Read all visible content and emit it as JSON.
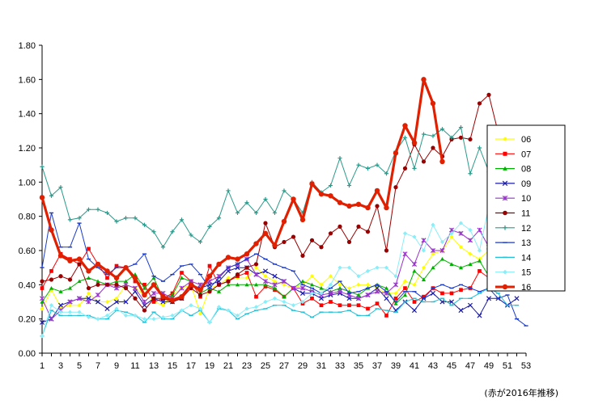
{
  "chart_data": {
    "type": "line",
    "title": "",
    "xlabel": "",
    "ylabel": "",
    "xlim": [
      1,
      53
    ],
    "ylim": [
      0,
      1.8
    ],
    "yticks": [
      "0.00",
      "0.20",
      "0.40",
      "0.60",
      "0.80",
      "1.00",
      "1.20",
      "1.40",
      "1.60",
      "1.80"
    ],
    "xticks": [
      1,
      3,
      5,
      7,
      9,
      11,
      13,
      15,
      17,
      19,
      21,
      23,
      25,
      27,
      29,
      31,
      33,
      35,
      37,
      39,
      41,
      43,
      45,
      47,
      49,
      51,
      53
    ],
    "grid": false,
    "legend_position": "right",
    "note": "(赤が2016年推移)",
    "series": [
      {
        "name": "06",
        "color": "#ffff00",
        "marker": "diamond",
        "values": [
          0.26,
          0.37,
          0.27,
          0.28,
          0.28,
          0.35,
          0.3,
          0.3,
          0.32,
          0.4,
          0.38,
          0.34,
          0.3,
          0.28,
          0.34,
          0.38,
          0.4,
          0.23,
          0.38,
          0.4,
          0.44,
          0.44,
          0.44,
          0.5,
          0.45,
          0.42,
          0.4,
          0.38,
          0.4,
          0.45,
          0.4,
          0.45,
          0.4,
          0.38,
          0.4,
          0.4,
          0.38,
          0.35,
          0.35,
          0.42,
          0.4,
          0.5,
          0.58,
          0.6,
          0.68,
          0.62,
          0.58,
          0.55,
          0.6,
          0.62,
          0.64,
          0.5
        ]
      },
      {
        "name": "07",
        "color": "#ff0000",
        "marker": "square",
        "values": [
          0.38,
          0.48,
          0.58,
          0.55,
          0.52,
          0.61,
          0.52,
          0.44,
          0.51,
          0.5,
          0.42,
          0.4,
          0.3,
          0.32,
          0.35,
          0.47,
          0.42,
          0.33,
          0.51,
          0.4,
          0.42,
          0.45,
          0.47,
          0.33,
          0.39,
          0.37,
          0.33,
          0.38,
          0.29,
          0.32,
          0.28,
          0.3,
          0.28,
          0.28,
          0.28,
          0.26,
          0.29,
          0.22,
          0.32,
          0.38,
          0.3,
          0.33,
          0.38,
          0.35,
          0.35,
          0.37,
          0.38,
          0.48,
          0.44,
          0.45,
          0.48,
          0.5
        ]
      },
      {
        "name": "08",
        "color": "#00b000",
        "marker": "triangle",
        "values": [
          0.3,
          0.38,
          0.36,
          0.38,
          0.42,
          0.44,
          0.42,
          0.4,
          0.42,
          0.42,
          0.46,
          0.38,
          0.44,
          0.32,
          0.34,
          0.44,
          0.42,
          0.35,
          0.38,
          0.36,
          0.4,
          0.4,
          0.4,
          0.4,
          0.4,
          0.38,
          0.33,
          0.38,
          0.42,
          0.4,
          0.38,
          0.36,
          0.38,
          0.36,
          0.34,
          0.38,
          0.4,
          0.38,
          0.29,
          0.34,
          0.48,
          0.43,
          0.5,
          0.55,
          0.52,
          0.5,
          0.52,
          0.54,
          0.45,
          0.42,
          0.52,
          0.47
        ]
      },
      {
        "name": "09",
        "color": "#1a1aaa",
        "marker": "x",
        "values": [
          0.18,
          0.2,
          0.28,
          0.3,
          0.32,
          0.32,
          0.3,
          0.26,
          0.3,
          0.3,
          0.36,
          0.28,
          0.32,
          0.3,
          0.3,
          0.32,
          0.4,
          0.38,
          0.4,
          0.42,
          0.48,
          0.5,
          0.5,
          0.46,
          0.48,
          0.45,
          0.42,
          0.38,
          0.35,
          0.35,
          0.32,
          0.34,
          0.35,
          0.32,
          0.32,
          0.34,
          0.38,
          0.32,
          0.25,
          0.3,
          0.25,
          0.32,
          0.35,
          0.3,
          0.3,
          0.25,
          0.28,
          0.22,
          0.32,
          0.32,
          0.28,
          0.32
        ]
      },
      {
        "name": "10",
        "color": "#9933cc",
        "marker": "asterisk",
        "values": [
          0.32,
          0.2,
          0.25,
          0.3,
          0.32,
          0.3,
          0.34,
          0.4,
          0.38,
          0.4,
          0.38,
          0.3,
          0.35,
          0.35,
          0.32,
          0.38,
          0.42,
          0.4,
          0.42,
          0.45,
          0.5,
          0.52,
          0.55,
          0.46,
          0.42,
          0.4,
          0.42,
          0.38,
          0.38,
          0.36,
          0.34,
          0.35,
          0.36,
          0.34,
          0.32,
          0.34,
          0.36,
          0.35,
          0.4,
          0.58,
          0.52,
          0.66,
          0.6,
          0.6,
          0.72,
          0.7,
          0.66,
          0.72,
          0.62,
          0.64,
          0.65,
          0.4
        ]
      },
      {
        "name": "11",
        "color": "#990000",
        "marker": "circle",
        "values": [
          0.42,
          0.43,
          0.45,
          0.43,
          0.52,
          0.38,
          0.4,
          0.4,
          0.4,
          0.38,
          0.32,
          0.25,
          0.32,
          0.32,
          0.3,
          0.32,
          0.38,
          0.34,
          0.36,
          0.4,
          0.42,
          0.46,
          0.5,
          0.52,
          0.76,
          0.62,
          0.65,
          0.68,
          0.57,
          0.66,
          0.62,
          0.7,
          0.74,
          0.65,
          0.74,
          0.71,
          0.86,
          0.6,
          0.97,
          1.08,
          1.22,
          1.12,
          1.2,
          1.15,
          1.25,
          1.26,
          1.25,
          1.46,
          1.51,
          1.29,
          1.18,
          1.0
        ]
      },
      {
        "name": "12",
        "color": "#2a9a8a",
        "marker": "plus",
        "values": [
          1.09,
          0.92,
          0.97,
          0.78,
          0.79,
          0.84,
          0.84,
          0.82,
          0.77,
          0.79,
          0.79,
          0.75,
          0.71,
          0.62,
          0.71,
          0.78,
          0.69,
          0.65,
          0.74,
          0.79,
          0.95,
          0.82,
          0.88,
          0.82,
          0.9,
          0.82,
          0.95,
          0.9,
          0.82,
          1.0,
          0.94,
          0.98,
          1.14,
          0.98,
          1.1,
          1.08,
          1.1,
          1.05,
          1.18,
          1.26,
          1.08,
          1.28,
          1.27,
          1.31,
          1.26,
          1.32,
          1.05,
          1.2,
          1.06,
          1.07,
          0.94,
          0.88
        ]
      },
      {
        "name": "13",
        "color": "#1a3ac8",
        "marker": "dash",
        "values": [
          0.5,
          0.82,
          0.62,
          0.62,
          0.76,
          0.55,
          0.5,
          0.46,
          0.5,
          0.5,
          0.52,
          0.58,
          0.45,
          0.42,
          0.46,
          0.51,
          0.52,
          0.46,
          0.38,
          0.44,
          0.5,
          0.52,
          0.55,
          0.58,
          0.55,
          0.52,
          0.5,
          0.48,
          0.4,
          0.38,
          0.35,
          0.38,
          0.42,
          0.35,
          0.36,
          0.38,
          0.4,
          0.36,
          0.3,
          0.36,
          0.36,
          0.32,
          0.38,
          0.4,
          0.38,
          0.4,
          0.38,
          0.36,
          0.38,
          0.32,
          0.34,
          0.2,
          0.16
        ]
      },
      {
        "name": "14",
        "color": "#20c0d8",
        "marker": "dash",
        "values": [
          0.1,
          0.25,
          0.22,
          0.22,
          0.22,
          0.22,
          0.2,
          0.2,
          0.25,
          0.24,
          0.22,
          0.18,
          0.24,
          0.2,
          0.2,
          0.25,
          0.22,
          0.25,
          0.18,
          0.26,
          0.25,
          0.2,
          0.23,
          0.25,
          0.26,
          0.28,
          0.28,
          0.25,
          0.24,
          0.21,
          0.24,
          0.24,
          0.24,
          0.25,
          0.22,
          0.22,
          0.26,
          0.25,
          0.24,
          0.3,
          0.32,
          0.3,
          0.3,
          0.32,
          0.28,
          0.32,
          0.32,
          0.35,
          0.38,
          0.35,
          0.28,
          0.28
        ]
      },
      {
        "name": "15",
        "color": "#88eef8",
        "marker": "diamond",
        "values": [
          0.1,
          0.28,
          0.24,
          0.24,
          0.24,
          0.21,
          0.2,
          0.22,
          0.26,
          0.22,
          0.22,
          0.2,
          0.2,
          0.21,
          0.22,
          0.25,
          0.28,
          0.26,
          0.18,
          0.27,
          0.25,
          0.22,
          0.26,
          0.27,
          0.3,
          0.32,
          0.3,
          0.28,
          0.3,
          0.35,
          0.35,
          0.4,
          0.5,
          0.5,
          0.45,
          0.48,
          0.5,
          0.5,
          0.45,
          0.7,
          0.68,
          0.6,
          0.75,
          0.65,
          0.7,
          0.76,
          0.72,
          0.6,
          0.86,
          0.82,
          0.78,
          0.68,
          0.44
        ]
      },
      {
        "name": "16",
        "color": "#e02000",
        "marker": "circle",
        "bold": true,
        "values": [
          0.91,
          0.72,
          0.57,
          0.54,
          0.55,
          0.48,
          0.52,
          0.48,
          0.44,
          0.5,
          0.44,
          0.34,
          0.4,
          0.33,
          0.31,
          0.33,
          0.4,
          0.37,
          0.45,
          0.52,
          0.56,
          0.55,
          0.58,
          0.64,
          0.7,
          0.63,
          0.77,
          0.9,
          0.78,
          0.99,
          0.93,
          0.92,
          0.88,
          0.86,
          0.87,
          0.85,
          0.95,
          0.85,
          1.17,
          1.33,
          1.23,
          1.6,
          1.46,
          1.12
        ]
      }
    ]
  }
}
